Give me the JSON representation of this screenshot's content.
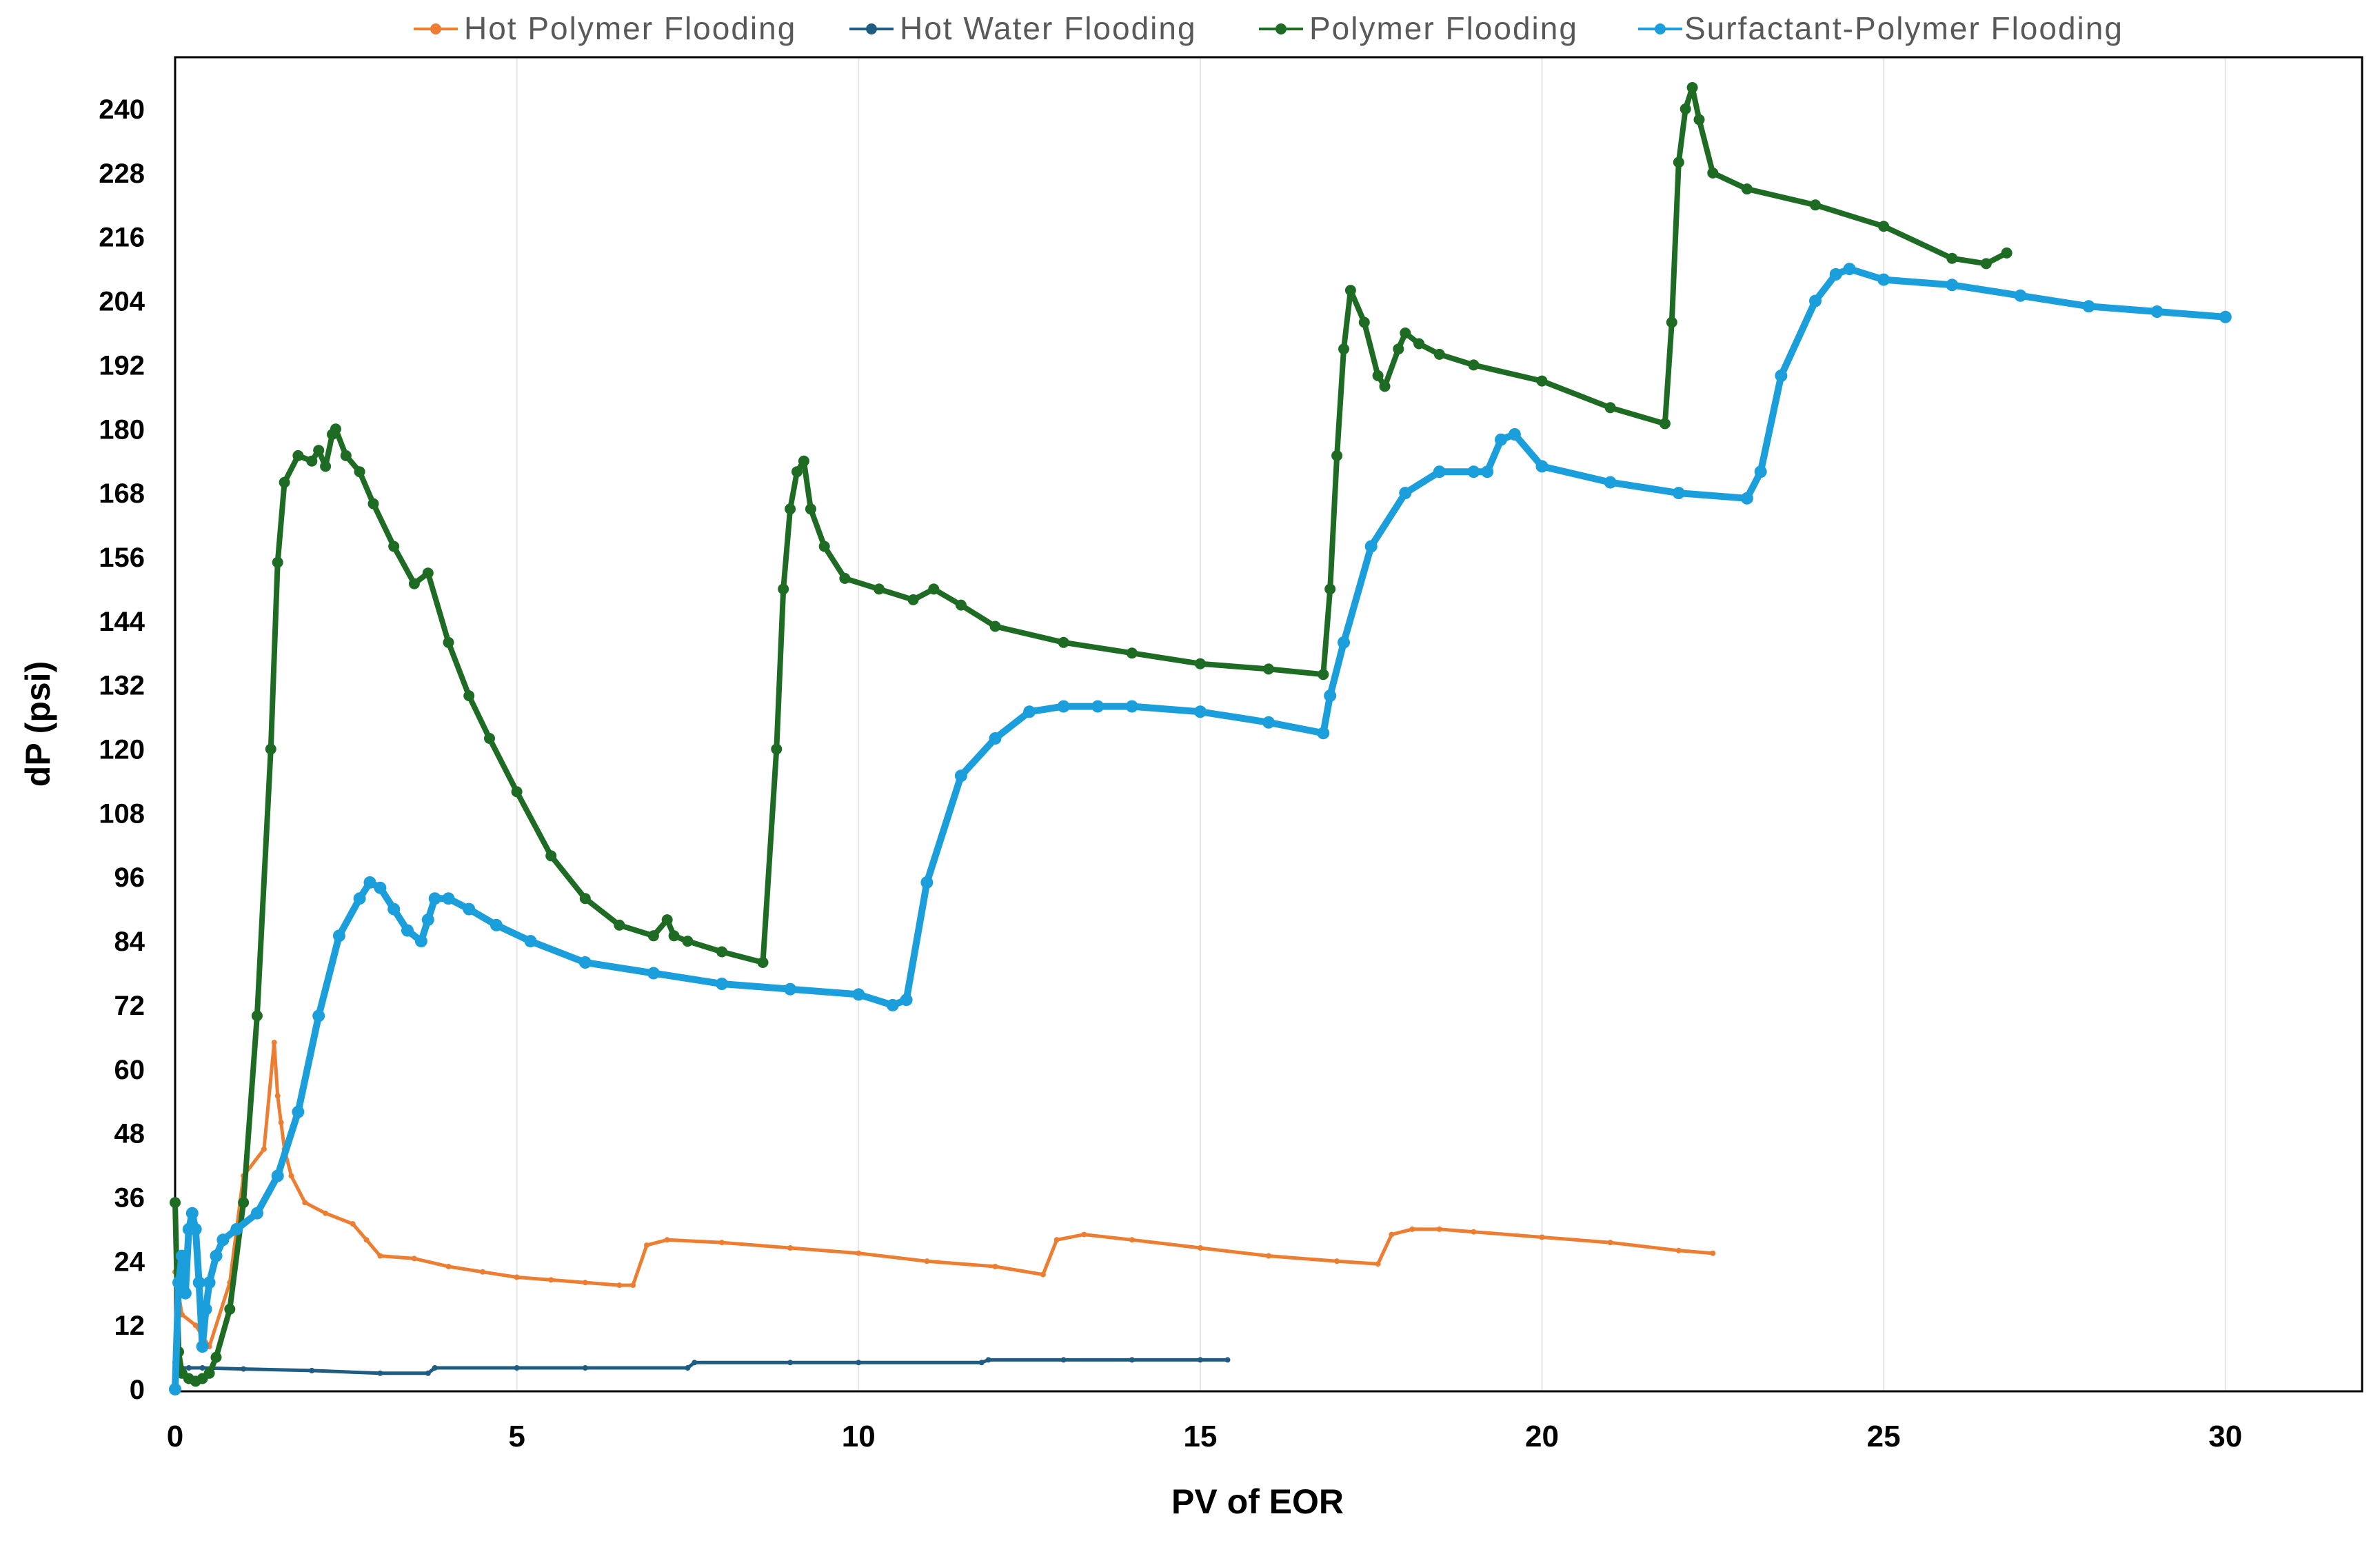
{
  "chart_data": {
    "type": "line",
    "xlabel": "PV of EOR",
    "ylabel": "dP (psi)",
    "xlim": [
      0,
      32
    ],
    "ylim": [
      0,
      250
    ],
    "x_ticks": [
      0,
      5,
      10,
      15,
      20,
      25,
      30
    ],
    "y_ticks": [
      0,
      12,
      24,
      36,
      48,
      60,
      72,
      84,
      96,
      108,
      120,
      132,
      144,
      156,
      168,
      180,
      192,
      204,
      216,
      228,
      240
    ],
    "grid": "vertical",
    "legend_position": "top",
    "series": [
      {
        "name": "Hot Polymer Flooding",
        "color": "#ED7D31",
        "x": [
          0,
          0.1,
          0.3,
          0.5,
          0.8,
          1.0,
          1.3,
          1.45,
          1.5,
          1.55,
          1.6,
          1.7,
          1.9,
          2.2,
          2.6,
          2.8,
          3.0,
          3.5,
          4.0,
          4.5,
          5.0,
          5.5,
          6.0,
          6.5,
          6.7,
          6.9,
          7.2,
          8.0,
          9.0,
          10.0,
          11.0,
          12.0,
          12.7,
          12.9,
          13.3,
          14.0,
          15.0,
          16.0,
          17.0,
          17.6,
          17.8,
          18.1,
          18.5,
          19.0,
          20.0,
          21.0,
          22.0,
          22.5
        ],
        "y": [
          22,
          14,
          12,
          8,
          20,
          40,
          45,
          65,
          55,
          50,
          45,
          40,
          35,
          33,
          31,
          28,
          25,
          24.5,
          23,
          22,
          21,
          20.5,
          20,
          19.5,
          19.5,
          27,
          28,
          27.5,
          26.5,
          25.5,
          24,
          23,
          21.5,
          28,
          29,
          28,
          26.5,
          25,
          24,
          23.5,
          29,
          30,
          30,
          29.5,
          28.5,
          27.5,
          26,
          25.5
        ]
      },
      {
        "name": "Hot Water Flooding",
        "color": "#1F5C82",
        "x": [
          0,
          0.1,
          0.2,
          0.4,
          1.0,
          2.0,
          3.0,
          3.7,
          3.8,
          5.0,
          6.0,
          7.5,
          7.6,
          9.0,
          10.0,
          11.8,
          11.9,
          13.0,
          14.0,
          15.0,
          15.4
        ],
        "y": [
          5,
          4,
          4,
          4,
          3.8,
          3.5,
          3,
          3,
          4,
          4,
          4,
          4,
          5,
          5,
          5,
          5,
          5.5,
          5.5,
          5.5,
          5.5,
          5.5
        ]
      },
      {
        "name": "Polymer Flooding",
        "color": "#1E6B24",
        "x": [
          0,
          0.05,
          0.1,
          0.2,
          0.3,
          0.4,
          0.5,
          0.6,
          0.8,
          1.0,
          1.2,
          1.4,
          1.5,
          1.6,
          1.8,
          2.0,
          2.1,
          2.2,
          2.3,
          2.35,
          2.5,
          2.7,
          2.9,
          3.2,
          3.5,
          3.7,
          4.0,
          4.3,
          4.6,
          5.0,
          5.5,
          6.0,
          6.5,
          7.0,
          7.2,
          7.3,
          7.5,
          8.0,
          8.6,
          8.8,
          8.9,
          9.0,
          9.1,
          9.2,
          9.3,
          9.5,
          9.8,
          10.3,
          10.8,
          11.1,
          11.5,
          12.0,
          13.0,
          14.0,
          15.0,
          16.0,
          16.8,
          16.9,
          17.0,
          17.1,
          17.2,
          17.4,
          17.6,
          17.7,
          17.9,
          18.0,
          18.2,
          18.5,
          19.0,
          20.0,
          21.0,
          21.8,
          21.9,
          22.0,
          22.1,
          22.2,
          22.3,
          22.5,
          23.0,
          24.0,
          25.0,
          26.0,
          26.5,
          26.8
        ],
        "y": [
          35,
          7,
          3,
          2,
          1.5,
          2,
          3,
          6,
          15,
          35,
          70,
          120,
          155,
          170,
          175,
          174,
          176,
          173,
          179,
          180,
          175,
          172,
          166,
          158,
          151,
          153,
          140,
          130,
          122,
          112,
          100,
          92,
          87,
          85,
          88,
          85,
          84,
          82,
          80,
          120,
          150,
          165,
          172,
          174,
          165,
          158,
          152,
          150,
          148,
          150,
          147,
          143,
          140,
          138,
          136,
          135,
          134,
          150,
          175,
          195,
          206,
          200,
          190,
          188,
          195,
          198,
          196,
          194,
          192,
          189,
          184,
          181,
          200,
          230,
          240,
          244,
          238,
          228,
          225,
          222,
          218,
          212,
          211,
          213
        ]
      },
      {
        "name": "Surfactant-Polymer Flooding",
        "color": "#1B9EDC",
        "x": [
          0,
          0.05,
          0.1,
          0.15,
          0.2,
          0.25,
          0.3,
          0.35,
          0.4,
          0.45,
          0.5,
          0.6,
          0.7,
          0.9,
          1.2,
          1.5,
          1.8,
          2.1,
          2.4,
          2.7,
          2.85,
          3.0,
          3.2,
          3.4,
          3.6,
          3.7,
          3.8,
          4.0,
          4.3,
          4.7,
          5.2,
          6.0,
          7.0,
          8.0,
          9.0,
          10.0,
          10.5,
          10.7,
          11.0,
          11.5,
          12.0,
          12.5,
          13.0,
          13.5,
          14.0,
          15.0,
          16.0,
          16.8,
          16.9,
          17.1,
          17.5,
          18.0,
          18.5,
          19.0,
          19.2,
          19.4,
          19.6,
          20.0,
          21.0,
          22.0,
          23.0,
          23.2,
          23.5,
          24.0,
          24.3,
          24.5,
          25.0,
          26.0,
          27.0,
          28.0,
          29.0,
          30.0
        ],
        "y": [
          0,
          20,
          25,
          18,
          30,
          33,
          30,
          20,
          8,
          15,
          20,
          25,
          28,
          30,
          33,
          40,
          52,
          70,
          85,
          92,
          95,
          94,
          90,
          86,
          84,
          88,
          92,
          92,
          90,
          87,
          84,
          80,
          78,
          76,
          75,
          74,
          72,
          73,
          95,
          115,
          122,
          127,
          128,
          128,
          128,
          127,
          125,
          123,
          130,
          140,
          158,
          168,
          172,
          172,
          172,
          178,
          179,
          173,
          170,
          168,
          167,
          172,
          190,
          204,
          209,
          210,
          208,
          207,
          205,
          203,
          202,
          201
        ]
      }
    ]
  }
}
